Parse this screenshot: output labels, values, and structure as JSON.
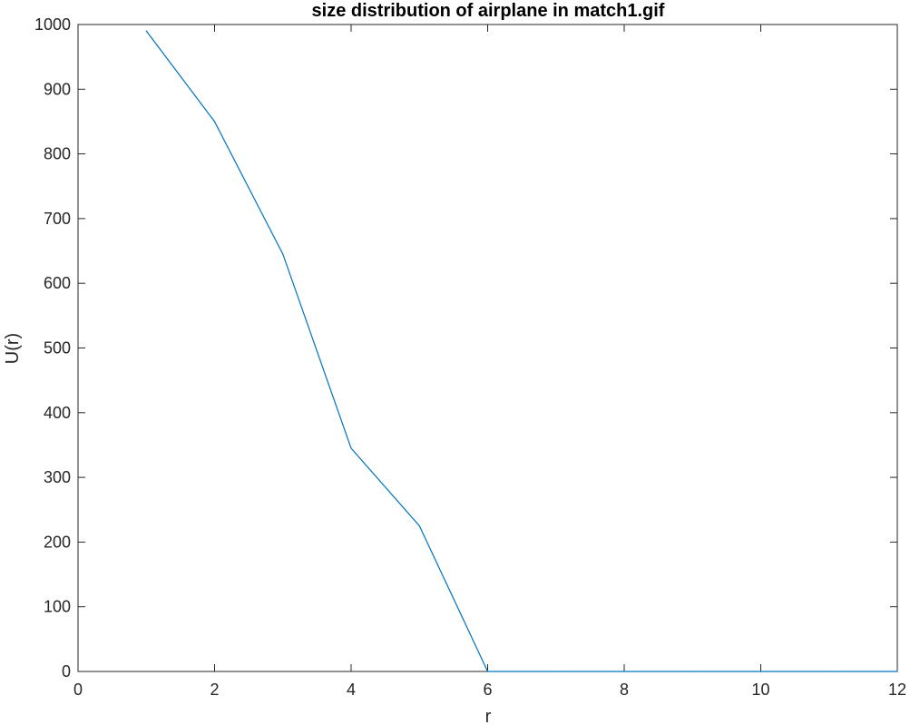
{
  "chart_data": {
    "type": "line",
    "title": "size distribution of airplane in match1.gif",
    "xlabel": "r",
    "ylabel": "U(r)",
    "xlim": [
      0,
      12
    ],
    "ylim": [
      0,
      1000
    ],
    "xticks": [
      0,
      2,
      4,
      6,
      8,
      10,
      12
    ],
    "yticks": [
      0,
      100,
      200,
      300,
      400,
      500,
      600,
      700,
      800,
      900,
      1000
    ],
    "grid": false,
    "series": [
      {
        "color": "#0072BD",
        "x": [
          1,
          2,
          3,
          4,
          5,
          6,
          7,
          8,
          9,
          10,
          11,
          12
        ],
        "y": [
          990,
          850,
          645,
          345,
          225,
          0,
          0,
          0,
          0,
          0,
          0,
          0
        ]
      }
    ]
  }
}
